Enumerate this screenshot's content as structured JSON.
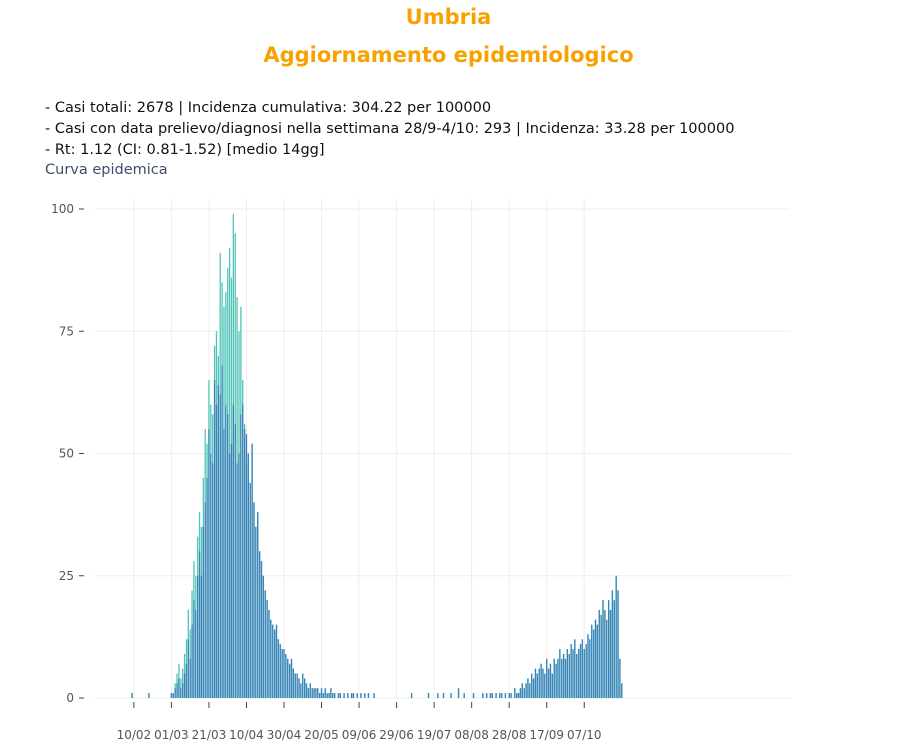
{
  "header": {
    "title": "Umbria",
    "subtitle": "Aggiornamento epidemiologico"
  },
  "stats": {
    "line1": "- Casi totali: 2678 | Incidenza cumulativa: 304.22 per 100000",
    "line2": "- Casi con data prelievo/diagnosi nella settimana 28/9-4/10: 293 | Incidenza: 33.28 per 100000",
    "line3": "- Rt: 1.12 (CI: 0.81-1.52) [medio 14gg]"
  },
  "chart_title": "Curva epidemica",
  "colors": {
    "bar_dark": "#3a82b8",
    "bar_light": "#4fc4b8",
    "grid": "#eeeeee"
  },
  "chart_data": {
    "type": "bar",
    "title": "Curva epidemica",
    "xlabel": "",
    "ylabel": "",
    "ylim": [
      0,
      100
    ],
    "yticks": [
      0,
      25,
      50,
      75,
      100
    ],
    "xticks": [
      "10/02",
      "01/03",
      "21/03",
      "10/04",
      "30/04",
      "20/05",
      "09/06",
      "29/06",
      "19/07",
      "08/08",
      "28/08",
      "17/09",
      "07/10"
    ],
    "grid": true,
    "legend": "none",
    "x_start": "2020-02-01",
    "series": [
      {
        "name": "",
        "values": [
          0,
          0,
          0,
          0,
          0,
          0,
          0,
          0,
          1,
          0,
          0,
          0,
          0,
          0,
          0,
          0,
          0,
          1,
          0,
          0,
          0,
          0,
          0,
          0,
          0,
          0,
          0,
          0,
          0,
          1,
          1,
          2,
          3,
          4,
          2,
          3,
          5,
          7,
          12,
          8,
          15,
          20,
          18,
          25,
          30,
          25,
          35,
          40,
          45,
          55,
          50,
          48,
          65,
          60,
          64,
          62,
          68,
          55,
          60,
          58,
          50,
          52,
          60,
          56,
          48,
          50,
          58,
          60,
          55,
          54,
          50,
          44,
          52,
          40,
          35,
          38,
          30,
          28,
          25,
          22,
          20,
          18,
          16,
          15,
          14,
          15,
          12,
          11,
          10,
          10,
          9,
          8,
          7,
          8,
          6,
          5,
          5,
          4,
          3,
          5,
          4,
          3,
          2,
          3,
          2,
          2,
          2,
          2,
          1,
          2,
          1,
          2,
          1,
          1,
          2,
          1,
          1,
          0,
          1,
          1,
          0,
          1,
          0,
          1,
          0,
          1,
          1,
          0,
          1,
          0,
          1,
          0,
          1,
          0,
          1,
          0,
          0,
          1,
          0,
          0,
          0,
          0,
          0,
          0,
          0,
          0,
          0,
          0,
          0,
          0,
          0,
          0,
          0,
          0,
          0,
          0,
          0,
          1,
          0,
          0,
          0,
          0,
          0,
          0,
          0,
          0,
          1,
          0,
          0,
          0,
          0,
          1,
          0,
          0,
          1,
          0,
          0,
          0,
          1,
          0,
          0,
          0,
          2,
          0,
          0,
          1,
          0,
          0,
          0,
          0,
          1,
          0,
          0,
          0,
          0,
          1,
          0,
          1,
          0,
          1,
          1,
          0,
          1,
          0,
          1,
          1,
          0,
          1,
          0,
          1,
          1,
          0,
          2,
          1,
          1,
          2,
          3,
          2,
          3,
          4,
          3,
          5,
          4,
          6,
          5,
          6,
          7,
          6,
          5,
          8,
          6,
          7,
          5,
          8,
          7,
          8,
          10,
          8,
          9,
          8,
          10,
          9,
          11,
          10,
          12,
          9,
          10,
          11,
          12,
          10,
          11,
          13,
          12,
          15,
          14,
          16,
          15,
          18,
          17,
          20,
          18,
          16,
          20,
          18,
          22,
          20,
          25,
          22,
          8,
          3
        ]
      },
      {
        "name": "",
        "values": [
          0,
          0,
          0,
          0,
          0,
          0,
          0,
          0,
          1,
          0,
          0,
          0,
          0,
          0,
          0,
          0,
          0,
          1,
          0,
          0,
          0,
          0,
          0,
          0,
          0,
          0,
          0,
          0,
          0,
          1,
          1,
          3,
          5,
          7,
          4,
          6,
          9,
          12,
          18,
          14,
          22,
          28,
          25,
          33,
          38,
          35,
          45,
          55,
          52,
          65,
          60,
          58,
          72,
          75,
          70,
          91,
          85,
          80,
          83,
          88,
          92,
          86,
          99,
          95,
          82,
          75,
          80,
          65,
          56,
          48,
          50,
          44,
          52,
          40,
          35,
          38,
          30,
          28,
          25,
          22,
          20,
          18,
          16,
          15,
          14,
          15,
          12,
          11,
          10,
          10,
          9,
          8,
          7,
          8,
          6,
          5,
          5,
          4,
          3,
          5,
          4,
          3,
          2,
          3,
          2,
          2,
          2,
          2,
          1,
          2,
          1,
          2,
          1,
          1,
          2,
          1,
          1,
          0,
          1,
          1,
          0,
          1,
          0,
          1,
          0,
          1,
          1,
          0,
          1,
          0,
          1,
          0,
          1,
          0,
          1,
          0,
          0,
          1,
          0,
          0,
          0,
          0,
          0,
          0,
          0,
          0,
          0,
          0,
          0,
          0,
          0,
          0,
          0,
          0,
          0,
          0,
          0,
          1,
          0,
          0,
          0,
          0,
          0,
          0,
          0,
          0,
          1,
          0,
          0,
          0,
          0,
          1,
          0,
          0,
          1,
          0,
          0,
          0,
          1,
          0,
          0,
          0,
          2,
          0,
          0,
          1,
          0,
          0,
          0,
          0,
          1,
          0,
          0,
          0,
          0,
          1,
          0,
          1,
          0,
          1,
          1,
          0,
          1,
          0,
          1,
          1,
          0,
          1,
          0,
          1,
          1,
          0,
          2,
          1,
          1,
          2,
          3,
          2,
          3,
          4,
          3,
          5,
          4,
          6,
          5,
          6,
          7,
          6,
          5,
          8,
          6,
          7,
          5,
          8,
          7,
          8,
          10,
          8,
          9,
          8,
          10,
          9,
          11,
          10,
          12,
          9,
          10,
          11,
          12,
          10,
          11,
          13,
          12,
          15,
          14,
          16,
          15,
          18,
          17,
          20,
          18,
          16,
          20,
          18,
          22,
          20,
          25,
          22,
          8,
          3
        ]
      }
    ]
  }
}
